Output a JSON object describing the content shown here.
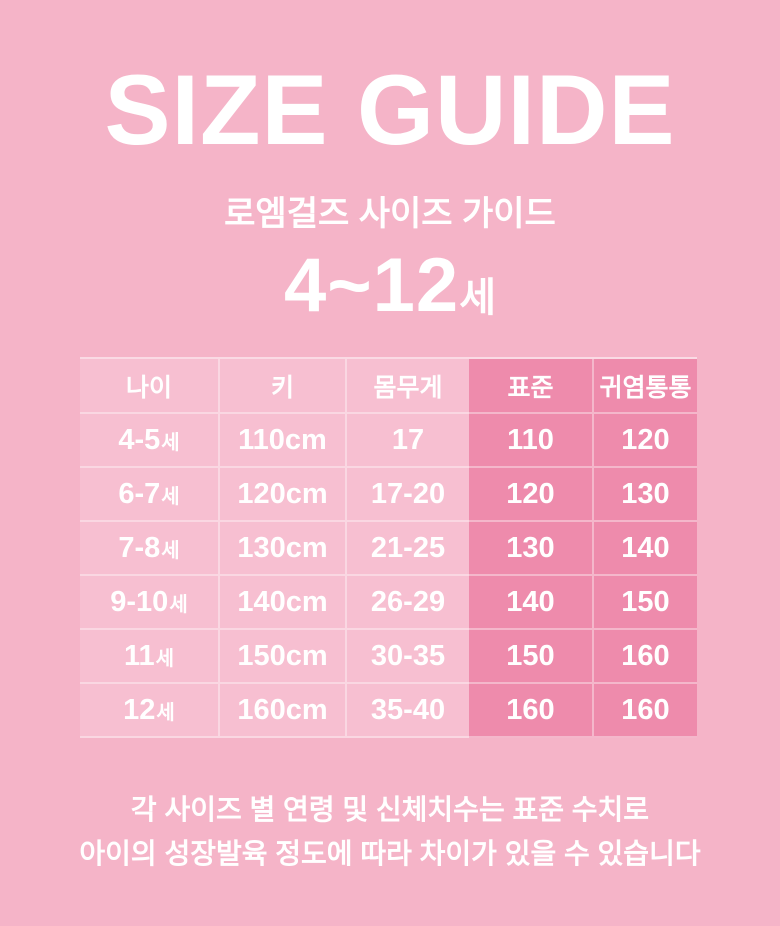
{
  "page": {
    "title": "SIZE GUIDE",
    "subtitle": "로엠걸즈 사이즈 가이드",
    "age_range": {
      "value": "4~12",
      "suffix": "세"
    }
  },
  "colors": {
    "background": "#F5B4C8",
    "table_light_cell": "#F7BFD1",
    "table_dark_cell": "#EE8BAC",
    "text": "#FFFFFF"
  },
  "table": {
    "headers": [
      "나이",
      "키",
      "몸무게",
      "표준",
      "귀염통통"
    ],
    "age_suffix": "세",
    "rows": [
      {
        "age": "4-5",
        "height": "110cm",
        "weight": "17",
        "standard": "110",
        "chubby": "120"
      },
      {
        "age": "6-7",
        "height": "120cm",
        "weight": "17-20",
        "standard": "120",
        "chubby": "130"
      },
      {
        "age": "7-8",
        "height": "130cm",
        "weight": "21-25",
        "standard": "130",
        "chubby": "140"
      },
      {
        "age": "9-10",
        "height": "140cm",
        "weight": "26-29",
        "standard": "140",
        "chubby": "150"
      },
      {
        "age": "11",
        "height": "150cm",
        "weight": "30-35",
        "standard": "150",
        "chubby": "160"
      },
      {
        "age": "12",
        "height": "160cm",
        "weight": "35-40",
        "standard": "160",
        "chubby": "160"
      }
    ]
  },
  "footer": {
    "line1": "각 사이즈 별 연령 및 신체치수는 표준 수치로",
    "line2": "아이의 성장발육 정도에 따라 차이가 있을 수 있습니다"
  }
}
